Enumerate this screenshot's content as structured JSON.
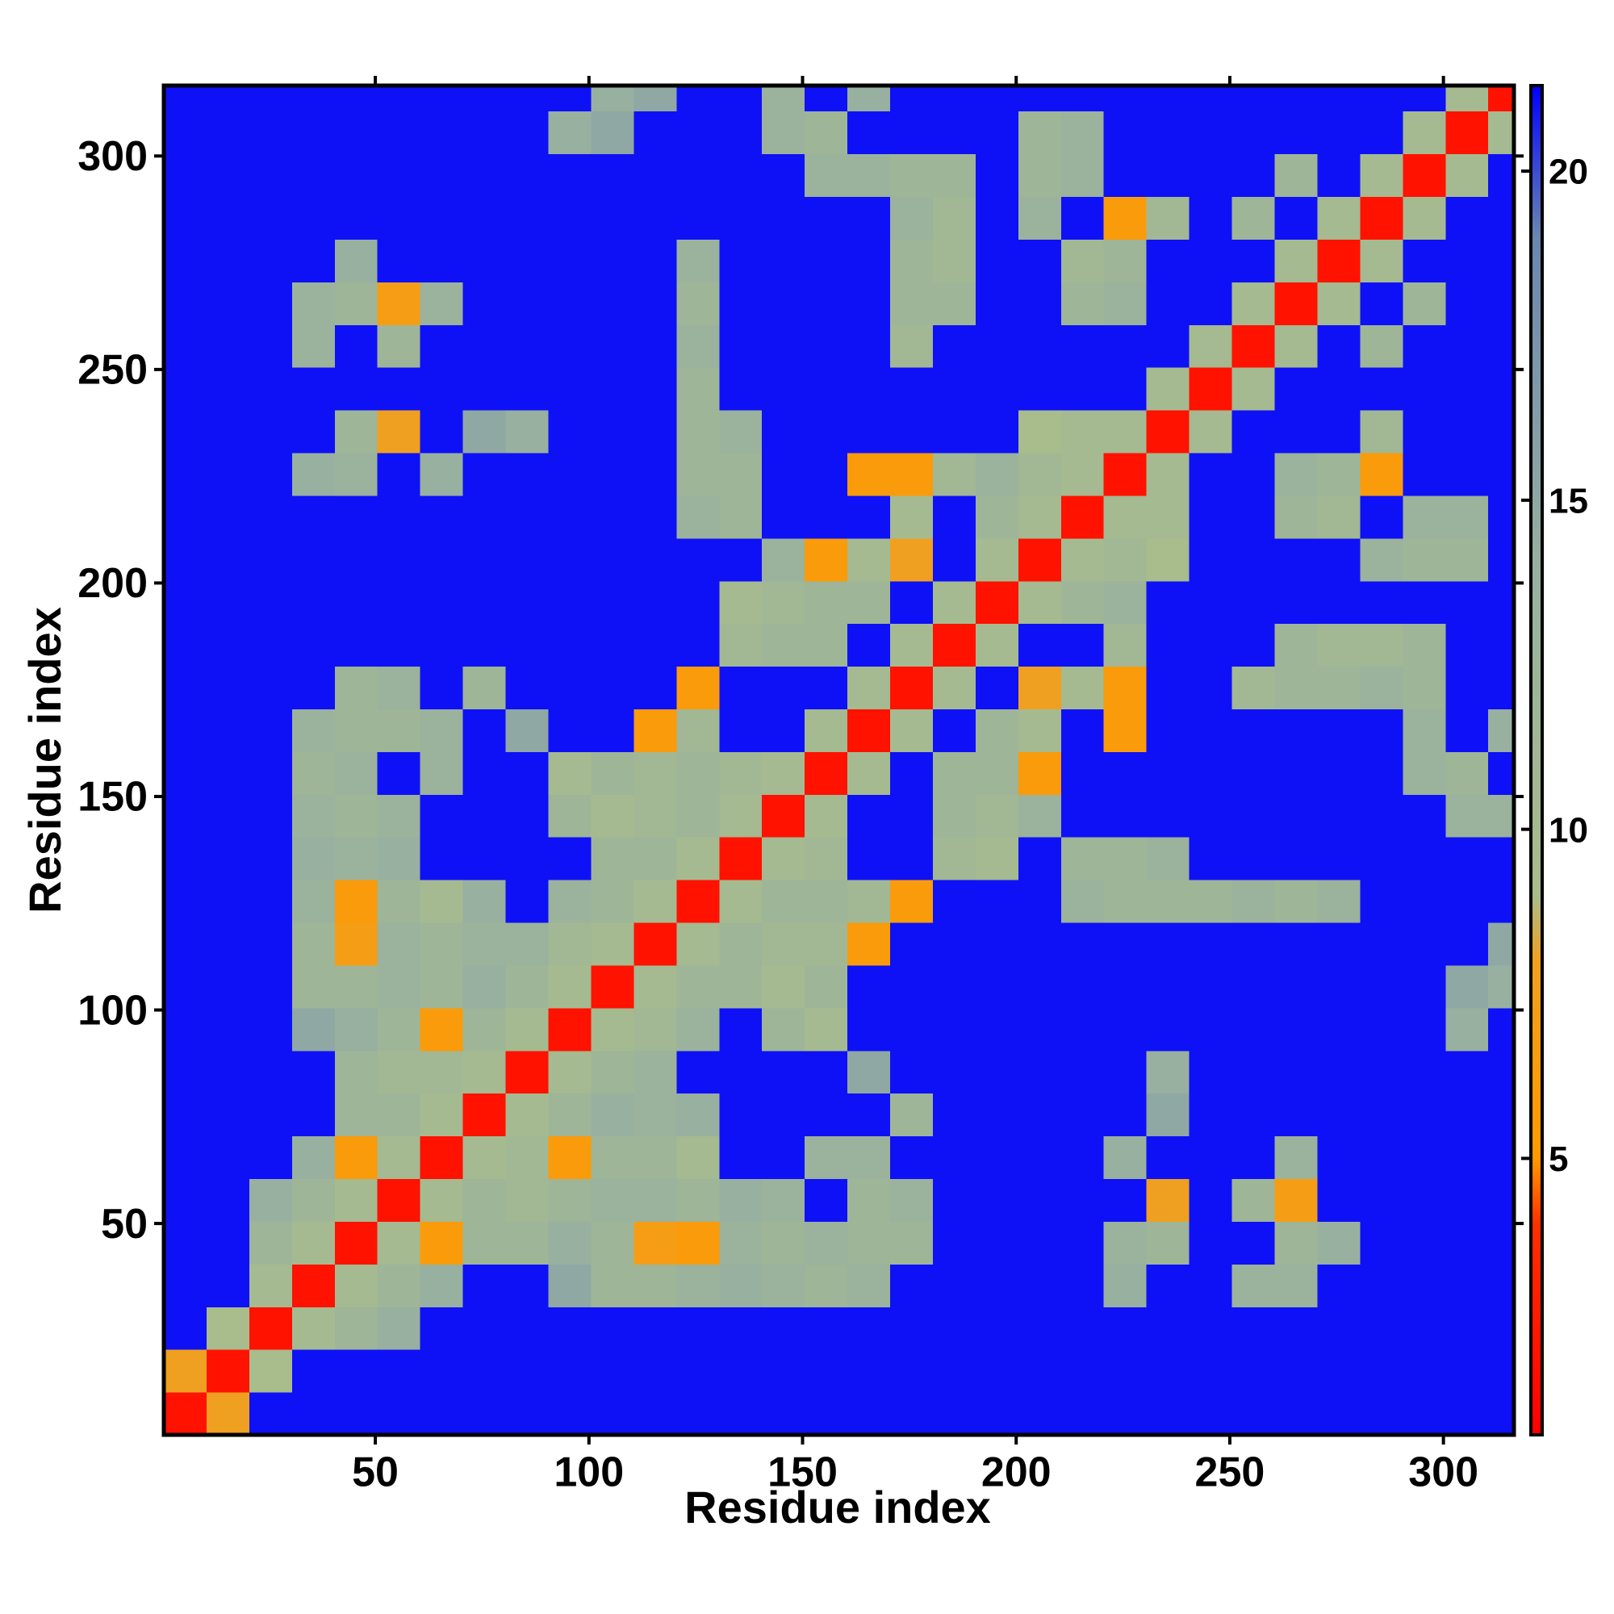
{
  "chart_data": {
    "type": "heatmap",
    "x_label": "Residue index",
    "y_label": "Residue index",
    "bins": [
      0.5,
      10.5,
      20.5,
      30.5,
      40.5,
      50.5,
      60.5,
      70.5,
      80.5,
      90.5,
      100.5,
      110.5,
      120.5,
      130.5,
      140.5,
      150.5,
      160.5,
      170.5,
      180.5,
      190.5,
      200.5,
      210.5,
      220.5,
      230.5,
      240.5,
      250.5,
      260.5,
      270.5,
      280.5,
      290.5,
      300.5,
      310.5,
      316.5
    ],
    "xlim": [
      0.5,
      316.5
    ],
    "ylim": [
      0.5,
      316.5
    ],
    "xticks": [
      50,
      100,
      150,
      200,
      250,
      300
    ],
    "yticks": [
      50,
      100,
      150,
      200,
      250,
      300
    ],
    "zlim": [
      0.8,
      21.3
    ],
    "zticks": [
      5,
      10,
      15,
      20
    ],
    "colorscale": [
      [
        0.8,
        "#ff0000"
      ],
      [
        4,
        "#ff3000"
      ],
      [
        5,
        "#ff9900"
      ],
      [
        8,
        "#f0a020"
      ],
      [
        9,
        "#a8bc8c"
      ],
      [
        14,
        "#98b0a0"
      ],
      [
        19,
        "#6a86b0"
      ],
      [
        21.3,
        "#0000ff"
      ]
    ],
    "values": [
      [
        2,
        8,
        21,
        21,
        21,
        21,
        21,
        21,
        21,
        21,
        21,
        21,
        21,
        21,
        21,
        21,
        21,
        21,
        21,
        21,
        21,
        21,
        21,
        21,
        21,
        21,
        21,
        21,
        21,
        21,
        21,
        21
      ],
      [
        8,
        2,
        9,
        21,
        21,
        21,
        21,
        21,
        21,
        21,
        21,
        21,
        21,
        21,
        21,
        21,
        21,
        21,
        21,
        21,
        21,
        21,
        21,
        21,
        21,
        21,
        21,
        21,
        21,
        21,
        21,
        21
      ],
      [
        21,
        9,
        2,
        10,
        12,
        14,
        21,
        21,
        21,
        21,
        21,
        21,
        21,
        21,
        21,
        21,
        21,
        21,
        21,
        21,
        21,
        21,
        21,
        21,
        21,
        21,
        21,
        21,
        21,
        21,
        21,
        21
      ],
      [
        21,
        21,
        10,
        2,
        10,
        12,
        14,
        21,
        21,
        15,
        12,
        12,
        13,
        14,
        13,
        12,
        13,
        21,
        21,
        21,
        21,
        21,
        14,
        21,
        21,
        13,
        13,
        21,
        21,
        21,
        21,
        21
      ],
      [
        21,
        21,
        12,
        10,
        2,
        10,
        6,
        12,
        12,
        14,
        12,
        7,
        6,
        13,
        12,
        13,
        12,
        12,
        21,
        21,
        21,
        21,
        13,
        12,
        21,
        21,
        12,
        14,
        21,
        21,
        21,
        21
      ],
      [
        21,
        21,
        14,
        12,
        10,
        2,
        10,
        12,
        11,
        12,
        13,
        13,
        12,
        14,
        13,
        21,
        12,
        13,
        21,
        21,
        21,
        21,
        21,
        8,
        21,
        12,
        7,
        21,
        21,
        21,
        21,
        21
      ],
      [
        21,
        21,
        21,
        14,
        6,
        10,
        2,
        10,
        11,
        6,
        12,
        12,
        10,
        21,
        21,
        13,
        13,
        21,
        21,
        21,
        21,
        21,
        14,
        21,
        21,
        21,
        13,
        21,
        21,
        21,
        21,
        21
      ],
      [
        21,
        21,
        21,
        21,
        12,
        12,
        10,
        2,
        10,
        12,
        14,
        13,
        14,
        21,
        21,
        21,
        21,
        12,
        21,
        21,
        21,
        21,
        21,
        15,
        21,
        21,
        21,
        21,
        21,
        21,
        21,
        21
      ],
      [
        21,
        21,
        21,
        21,
        12,
        11,
        11,
        10,
        2,
        10,
        12,
        13,
        21,
        21,
        21,
        21,
        15,
        21,
        21,
        21,
        21,
        21,
        21,
        14,
        21,
        21,
        21,
        21,
        21,
        21,
        21,
        21
      ],
      [
        21,
        21,
        21,
        15,
        14,
        12,
        6,
        12,
        10,
        2,
        10,
        11,
        13,
        21,
        12,
        10,
        21,
        21,
        21,
        21,
        21,
        21,
        21,
        21,
        21,
        21,
        21,
        21,
        21,
        21,
        14,
        21
      ],
      [
        21,
        21,
        21,
        12,
        12,
        13,
        12,
        14,
        12,
        10,
        2,
        10,
        12,
        12,
        10,
        12,
        21,
        21,
        21,
        21,
        21,
        21,
        21,
        21,
        21,
        21,
        21,
        21,
        21,
        21,
        15,
        14
      ],
      [
        21,
        21,
        21,
        12,
        7,
        13,
        12,
        13,
        13,
        11,
        10,
        2,
        10,
        12,
        11,
        11,
        6,
        21,
        21,
        21,
        21,
        21,
        21,
        21,
        21,
        21,
        21,
        21,
        21,
        21,
        21,
        15
      ],
      [
        21,
        21,
        21,
        13,
        6,
        12,
        10,
        14,
        21,
        13,
        12,
        10,
        2,
        10,
        12,
        12,
        11,
        6,
        21,
        21,
        21,
        13,
        12,
        12,
        12,
        13,
        12,
        13,
        21,
        21,
        21,
        21
      ],
      [
        21,
        21,
        21,
        14,
        13,
        14,
        21,
        21,
        21,
        21,
        12,
        12,
        10,
        2,
        10,
        11,
        21,
        21,
        11,
        10,
        21,
        12,
        12,
        13,
        21,
        21,
        21,
        21,
        21,
        21,
        21,
        21
      ],
      [
        21,
        21,
        21,
        13,
        12,
        13,
        21,
        21,
        21,
        12,
        10,
        11,
        12,
        10,
        2,
        10,
        21,
        21,
        12,
        11,
        13,
        21,
        21,
        21,
        21,
        21,
        21,
        21,
        21,
        21,
        13,
        13
      ],
      [
        21,
        21,
        21,
        12,
        13,
        21,
        13,
        21,
        21,
        10,
        12,
        11,
        12,
        11,
        10,
        2,
        10,
        21,
        12,
        12,
        6,
        21,
        21,
        21,
        21,
        21,
        21,
        21,
        21,
        13,
        12,
        21
      ],
      [
        21,
        21,
        21,
        13,
        12,
        12,
        13,
        21,
        15,
        21,
        21,
        6,
        11,
        21,
        21,
        10,
        2,
        10,
        21,
        12,
        10,
        21,
        6,
        21,
        21,
        21,
        21,
        21,
        21,
        13,
        21,
        14
      ],
      [
        21,
        21,
        21,
        21,
        12,
        13,
        21,
        12,
        21,
        21,
        21,
        21,
        6,
        21,
        21,
        21,
        10,
        2,
        10,
        21,
        8,
        10,
        6,
        21,
        21,
        11,
        12,
        12,
        13,
        12,
        21,
        21
      ],
      [
        21,
        21,
        21,
        21,
        21,
        21,
        21,
        21,
        21,
        21,
        21,
        21,
        21,
        11,
        12,
        12,
        21,
        10,
        2,
        10,
        21,
        21,
        11,
        21,
        21,
        21,
        12,
        11,
        11,
        12,
        21,
        21
      ],
      [
        21,
        21,
        21,
        21,
        21,
        21,
        21,
        21,
        21,
        21,
        21,
        21,
        21,
        10,
        11,
        12,
        12,
        21,
        10,
        2,
        10,
        12,
        13,
        21,
        21,
        21,
        21,
        21,
        21,
        21,
        21,
        21
      ],
      [
        21,
        21,
        21,
        21,
        21,
        21,
        21,
        21,
        21,
        21,
        21,
        21,
        21,
        21,
        13,
        6,
        10,
        8,
        21,
        10,
        2,
        10,
        11,
        9,
        21,
        21,
        21,
        21,
        13,
        12,
        12,
        21
      ],
      [
        21,
        21,
        21,
        21,
        21,
        21,
        21,
        21,
        21,
        21,
        21,
        21,
        13,
        12,
        21,
        21,
        21,
        10,
        21,
        12,
        10,
        2,
        10,
        10,
        21,
        21,
        12,
        11,
        21,
        13,
        13,
        21
      ],
      [
        21,
        21,
        21,
        14,
        13,
        21,
        14,
        21,
        21,
        21,
        21,
        21,
        12,
        12,
        21,
        21,
        6,
        6,
        11,
        13,
        11,
        10,
        2,
        10,
        21,
        21,
        13,
        12,
        6,
        21,
        21,
        21
      ],
      [
        21,
        21,
        21,
        21,
        12,
        8,
        21,
        15,
        14,
        21,
        21,
        21,
        12,
        13,
        21,
        21,
        21,
        21,
        21,
        21,
        9,
        10,
        10,
        2,
        10,
        21,
        21,
        21,
        11,
        21,
        21,
        21
      ],
      [
        21,
        21,
        21,
        21,
        21,
        21,
        21,
        21,
        21,
        21,
        21,
        21,
        12,
        21,
        21,
        21,
        21,
        21,
        21,
        21,
        21,
        21,
        21,
        10,
        2,
        10,
        21,
        21,
        21,
        21,
        21,
        21
      ],
      [
        21,
        21,
        21,
        13,
        21,
        12,
        21,
        21,
        21,
        21,
        21,
        21,
        13,
        21,
        21,
        21,
        21,
        11,
        21,
        21,
        21,
        21,
        21,
        21,
        10,
        2,
        10,
        21,
        12,
        21,
        21,
        21
      ],
      [
        21,
        21,
        21,
        13,
        12,
        7,
        13,
        21,
        21,
        21,
        21,
        21,
        12,
        21,
        21,
        21,
        21,
        12,
        12,
        21,
        21,
        12,
        13,
        21,
        21,
        10,
        2,
        10,
        21,
        12,
        21,
        21
      ],
      [
        21,
        21,
        21,
        21,
        14,
        21,
        21,
        21,
        21,
        21,
        21,
        21,
        13,
        21,
        21,
        21,
        21,
        12,
        11,
        21,
        21,
        11,
        12,
        21,
        21,
        21,
        10,
        2,
        10,
        21,
        21,
        21
      ],
      [
        21,
        21,
        21,
        21,
        21,
        21,
        21,
        21,
        21,
        21,
        21,
        21,
        21,
        21,
        21,
        21,
        21,
        13,
        11,
        21,
        13,
        21,
        6,
        11,
        21,
        12,
        21,
        10,
        2,
        10,
        21,
        21
      ],
      [
        21,
        21,
        21,
        21,
        21,
        21,
        21,
        21,
        21,
        21,
        21,
        21,
        21,
        21,
        21,
        13,
        13,
        12,
        12,
        21,
        12,
        13,
        21,
        21,
        21,
        21,
        12,
        21,
        10,
        2,
        10,
        21
      ],
      [
        21,
        21,
        21,
        21,
        21,
        21,
        21,
        21,
        21,
        14,
        15,
        21,
        21,
        21,
        13,
        12,
        21,
        21,
        21,
        21,
        12,
        13,
        21,
        21,
        21,
        21,
        21,
        21,
        21,
        10,
        2,
        10
      ],
      [
        21,
        21,
        21,
        21,
        21,
        21,
        21,
        21,
        21,
        21,
        14,
        15,
        21,
        21,
        13,
        21,
        14,
        21,
        21,
        21,
        21,
        21,
        21,
        21,
        21,
        21,
        21,
        21,
        21,
        21,
        10,
        2
      ]
    ]
  }
}
